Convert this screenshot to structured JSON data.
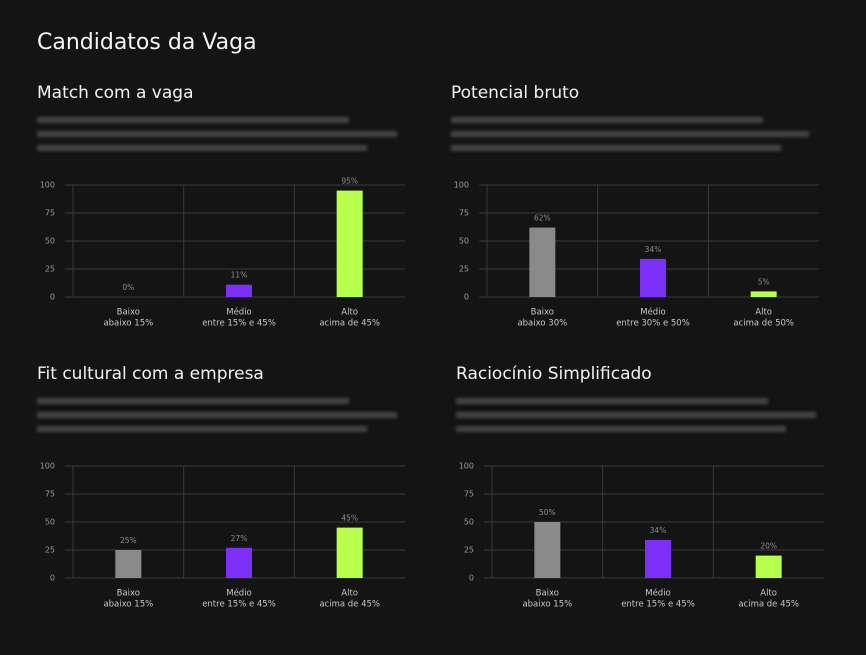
{
  "page_title": "Candidatos da Vaga",
  "chart_data": [
    {
      "type": "bar",
      "title": "Match com a vaga",
      "categories": [
        "Baixo",
        "Médio",
        "Alto"
      ],
      "category_sublabels": [
        "abaixo 15%",
        "entre 15% e 45%",
        "acima de 45%"
      ],
      "values": [
        0,
        11,
        95
      ],
      "value_labels": [
        "0%",
        "11%",
        "95%"
      ],
      "colors": [
        "#8a8a8a",
        "#7b2ff7",
        "#b6ff4a"
      ],
      "ylim": [
        0,
        100
      ],
      "yticks": [
        0,
        25,
        50,
        75,
        100
      ],
      "grid": true
    },
    {
      "type": "bar",
      "title": "Potencial bruto",
      "categories": [
        "Baixo",
        "Médio",
        "Alto"
      ],
      "category_sublabels": [
        "abaixo 30%",
        "entre 30% e 50%",
        "acima de 50%"
      ],
      "values": [
        62,
        34,
        5
      ],
      "value_labels": [
        "62%",
        "34%",
        "5%"
      ],
      "colors": [
        "#8a8a8a",
        "#7b2ff7",
        "#b6ff4a"
      ],
      "ylim": [
        0,
        100
      ],
      "yticks": [
        0,
        25,
        50,
        75,
        100
      ],
      "grid": true
    },
    {
      "type": "bar",
      "title": "Fit cultural com a empresa",
      "categories": [
        "Baixo",
        "Médio",
        "Alto"
      ],
      "category_sublabels": [
        "abaixo 15%",
        "entre 15% e 45%",
        "acima de 45%"
      ],
      "values": [
        25,
        27,
        45
      ],
      "value_labels": [
        "25%",
        "27%",
        "45%"
      ],
      "colors": [
        "#8a8a8a",
        "#7b2ff7",
        "#b6ff4a"
      ],
      "ylim": [
        0,
        100
      ],
      "yticks": [
        0,
        25,
        50,
        75,
        100
      ],
      "grid": true
    },
    {
      "type": "bar",
      "title": "Raciocínio Simplificado",
      "categories": [
        "Baixo",
        "Médio",
        "Alto"
      ],
      "category_sublabels": [
        "abaixo 15%",
        "entre 15% e 45%",
        "acima de 45%"
      ],
      "values": [
        50,
        34,
        20
      ],
      "value_labels": [
        "50%",
        "34%",
        "20%"
      ],
      "colors": [
        "#8a8a8a",
        "#7b2ff7",
        "#b6ff4a"
      ],
      "ylim": [
        0,
        100
      ],
      "yticks": [
        0,
        25,
        50,
        75,
        100
      ],
      "grid": true
    }
  ]
}
